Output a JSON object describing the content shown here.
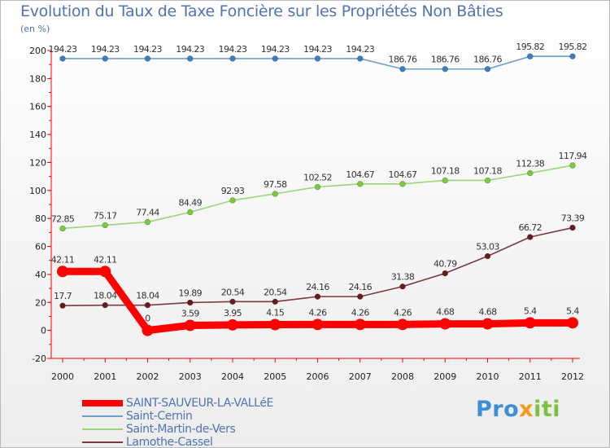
{
  "title": "Evolution du Taux de Taxe Foncière sur les Propriétés Non Bâties",
  "unit": "(en %)",
  "logo": {
    "parts": [
      {
        "text": "Pro",
        "color": "#3b8fd6"
      },
      {
        "text": "x",
        "color": "#f39a1b"
      },
      {
        "text": "iti",
        "color": "#7cc142"
      }
    ]
  },
  "chart_data": {
    "type": "line",
    "x": [
      "2000",
      "2001",
      "2002",
      "2003",
      "2004",
      "2005",
      "2006",
      "2007",
      "2008",
      "2009",
      "2010",
      "2011",
      "2012"
    ],
    "ylim": [
      -20,
      200
    ],
    "y_ticks": [
      -20,
      0,
      20,
      40,
      60,
      80,
      100,
      120,
      140,
      160,
      180,
      200
    ],
    "grid": false,
    "legend_position": "bottom-left",
    "series": [
      {
        "name": "SAINT-SAUVEUR-LA-VALLéE",
        "color": "#ff0000",
        "marker_color": "#ff0000",
        "bold": true,
        "values": [
          42.11,
          42.11,
          0,
          3.59,
          3.95,
          4.15,
          4.26,
          4.26,
          4.26,
          4.68,
          4.68,
          5.4,
          5.4
        ],
        "labels": [
          "42.11",
          "42.11",
          "0",
          "3.59",
          "3.95",
          "4.15",
          "4.26",
          "4.26",
          "4.26",
          "4.68",
          "4.68",
          "5.4",
          "5.4"
        ]
      },
      {
        "name": "Saint-Cernin",
        "color": "#6e9fcd",
        "marker_color": "#3c7fc1",
        "bold": false,
        "values": [
          194.23,
          194.23,
          194.23,
          194.23,
          194.23,
          194.23,
          194.23,
          194.23,
          186.76,
          186.76,
          186.76,
          195.82,
          195.82
        ],
        "labels": [
          "194.23",
          "194.23",
          "194.23",
          "194.23",
          "194.23",
          "194.23",
          "194.23",
          "194.23",
          "186.76",
          "186.76",
          "186.76",
          "195.82",
          "195.82"
        ]
      },
      {
        "name": "Saint-Martin-de-Vers",
        "color": "#99d67a",
        "marker_color": "#7ccc3a",
        "bold": false,
        "values": [
          72.85,
          75.17,
          77.44,
          84.49,
          92.93,
          97.58,
          102.52,
          104.67,
          104.67,
          107.18,
          107.18,
          112.38,
          117.94
        ],
        "labels": [
          "72.85",
          "75.17",
          "77.44",
          "84.49",
          "92.93",
          "97.58",
          "102.52",
          "104.67",
          "104.67",
          "107.18",
          "107.18",
          "112.38",
          "117.94"
        ]
      },
      {
        "name": "Lamothe-Cassel",
        "color": "#7a3a3e",
        "marker_color": "#6b1a1f",
        "bold": false,
        "values": [
          17.7,
          18.04,
          18.04,
          19.89,
          20.54,
          20.54,
          24.16,
          24.16,
          31.38,
          40.79,
          53.03,
          66.72,
          73.39
        ],
        "labels": [
          "17.7",
          "18.04",
          "18.04",
          "19.89",
          "20.54",
          "20.54",
          "24.16",
          "24.16",
          "31.38",
          "40.79",
          "53.03",
          "66.72",
          "73.39"
        ]
      }
    ]
  }
}
